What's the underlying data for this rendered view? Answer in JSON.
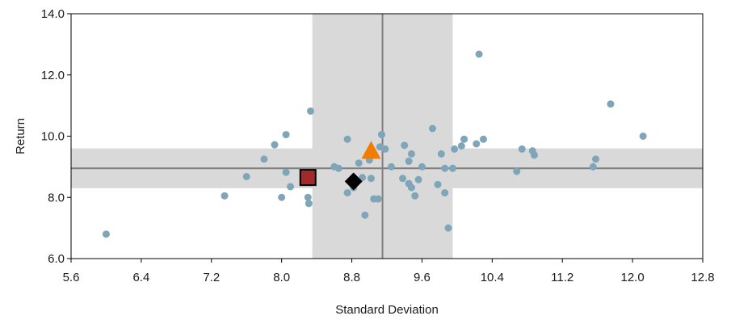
{
  "chart_data": {
    "type": "scatter",
    "xlabel": "Standard Deviation",
    "ylabel": "Return",
    "xlim": [
      5.6,
      12.8
    ],
    "ylim": [
      6.0,
      14.0
    ],
    "xticks": [
      "5.6",
      "6.4",
      "7.2",
      "8.0",
      "8.8",
      "9.6",
      "10.4",
      "11.2",
      "12.0",
      "12.8"
    ],
    "yticks": [
      "6.0",
      "8.0",
      "10.0",
      "12.0",
      "14.0"
    ],
    "grid": false,
    "bands": {
      "x_band": [
        8.35,
        9.95
      ],
      "y_band": [
        8.3,
        9.6
      ],
      "x_median": 9.15,
      "y_median": 8.95,
      "band_color": "#d9d9d9",
      "line_color": "#7f7f7f"
    },
    "series": [
      {
        "marker": "circle",
        "color": "#7ea6b8",
        "points": [
          [
            6.0,
            6.8
          ],
          [
            7.35,
            8.05
          ],
          [
            7.6,
            8.68
          ],
          [
            7.8,
            9.25
          ],
          [
            7.92,
            9.72
          ],
          [
            8.0,
            8.0
          ],
          [
            8.05,
            10.05
          ],
          [
            8.05,
            8.82
          ],
          [
            8.1,
            8.35
          ],
          [
            8.3,
            8.0
          ],
          [
            8.31,
            7.8
          ],
          [
            8.33,
            10.82
          ],
          [
            8.6,
            9.0
          ],
          [
            8.65,
            8.95
          ],
          [
            8.75,
            9.9
          ],
          [
            8.75,
            8.15
          ],
          [
            8.82,
            8.32
          ],
          [
            8.88,
            9.12
          ],
          [
            8.92,
            8.65
          ],
          [
            8.95,
            7.42
          ],
          [
            9.0,
            9.22
          ],
          [
            9.02,
            8.62
          ],
          [
            9.05,
            7.95
          ],
          [
            9.1,
            7.95
          ],
          [
            9.12,
            9.65
          ],
          [
            9.14,
            10.05
          ],
          [
            9.18,
            9.58
          ],
          [
            9.25,
            9.0
          ],
          [
            9.38,
            8.62
          ],
          [
            9.4,
            9.7
          ],
          [
            9.45,
            9.18
          ],
          [
            9.45,
            8.45
          ],
          [
            9.48,
            8.32
          ],
          [
            9.48,
            9.42
          ],
          [
            9.52,
            8.05
          ],
          [
            9.56,
            8.58
          ],
          [
            9.6,
            9.0
          ],
          [
            9.72,
            10.25
          ],
          [
            9.78,
            8.42
          ],
          [
            9.82,
            9.42
          ],
          [
            9.86,
            8.95
          ],
          [
            9.86,
            8.15
          ],
          [
            9.9,
            7.0
          ],
          [
            9.95,
            8.95
          ],
          [
            9.97,
            9.58
          ],
          [
            10.05,
            9.68
          ],
          [
            10.08,
            9.9
          ],
          [
            10.22,
            9.75
          ],
          [
            10.25,
            12.68
          ],
          [
            10.3,
            9.9
          ],
          [
            10.68,
            8.85
          ],
          [
            10.74,
            9.58
          ],
          [
            10.86,
            9.52
          ],
          [
            10.88,
            9.38
          ],
          [
            11.55,
            9.0
          ],
          [
            11.58,
            9.25
          ],
          [
            11.75,
            11.05
          ],
          [
            12.12,
            10.0
          ]
        ]
      },
      {
        "marker": "square",
        "color": "#a32a2a",
        "points": [
          [
            8.3,
            8.65
          ]
        ]
      },
      {
        "marker": "diamond",
        "color": "#000000",
        "points": [
          [
            8.82,
            8.52
          ]
        ]
      },
      {
        "marker": "triangle",
        "color": "#f07c00",
        "points": [
          [
            9.02,
            9.5
          ]
        ]
      }
    ]
  }
}
